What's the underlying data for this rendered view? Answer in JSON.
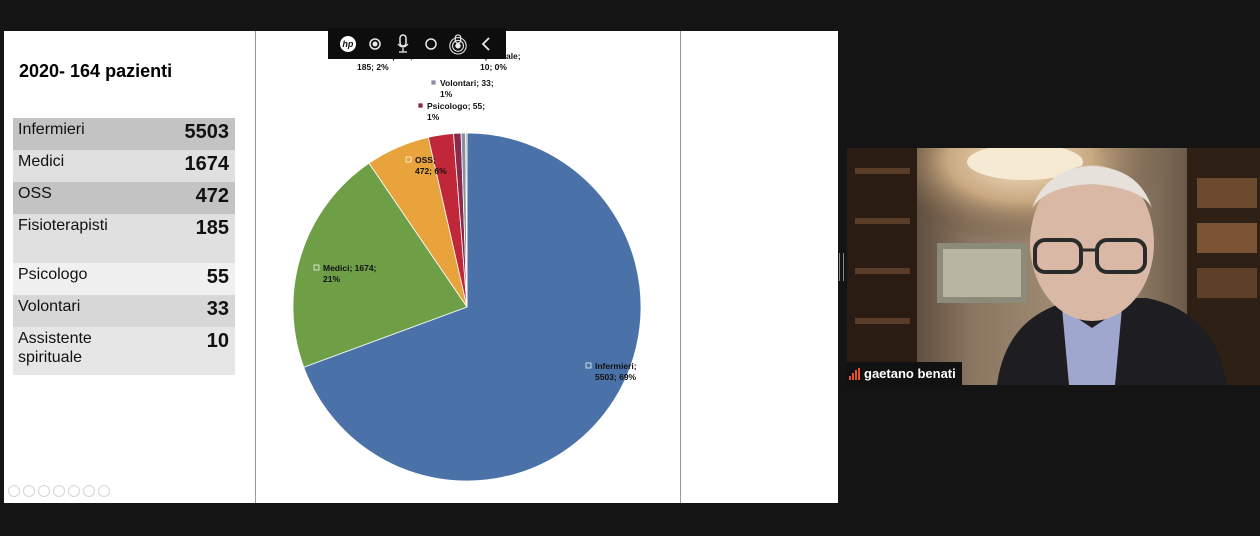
{
  "slide": {
    "title": "2020- 164 pazienti",
    "table": [
      {
        "label": "Infermieri",
        "value": "5503"
      },
      {
        "label": "Medici",
        "value": "1674"
      },
      {
        "label": "OSS",
        "value": "472"
      },
      {
        "label": "Fisioterapisti",
        "value": "185"
      },
      {
        "label": "Psicologo",
        "value": "55"
      },
      {
        "label": "Volontari",
        "value": "33"
      },
      {
        "label": "Assistente\nspirituale",
        "value": "10"
      }
    ]
  },
  "chart_data": {
    "type": "pie",
    "slices": [
      {
        "name": "Infermieri",
        "value": 5503,
        "label1": "Infermieri;",
        "label2": "5503; 69%",
        "color": "#4a72a8"
      },
      {
        "name": "Medici",
        "value": 1674,
        "label1": "Medici; 1674;",
        "label2": "21%",
        "color": "#6e9e45"
      },
      {
        "name": "OSS",
        "value": 472,
        "label1": "OSS;",
        "label2": "472; 6%",
        "color": "#e8a33d"
      },
      {
        "name": "Fisioterapisti",
        "value": 185,
        "label1": "Fisioterapisti;",
        "label2": "185; 2%",
        "color": "#c0283a"
      },
      {
        "name": "Psicologo",
        "value": 55,
        "label1": "Psicologo; 55;",
        "label2": "1%",
        "color": "#8a2b4c"
      },
      {
        "name": "Volontari",
        "value": 33,
        "label1": "Volontari; 33;",
        "label2": "1%",
        "color": "#8b8fa6"
      },
      {
        "name": "Assistente spirituale",
        "value": 10,
        "label1": "spirituale;",
        "label2": "10; 0%",
        "color": "#b0a06a"
      }
    ]
  },
  "toolbar": {
    "brand": "hp",
    "icons": [
      "hp-logo-icon",
      "record-icon",
      "microphone-icon",
      "circle-icon",
      "target-icon",
      "chevron-left-icon"
    ]
  },
  "video": {
    "participant_name": "gaetano benati"
  },
  "colors": {
    "background": "#141414",
    "signal": "#e8502a"
  }
}
